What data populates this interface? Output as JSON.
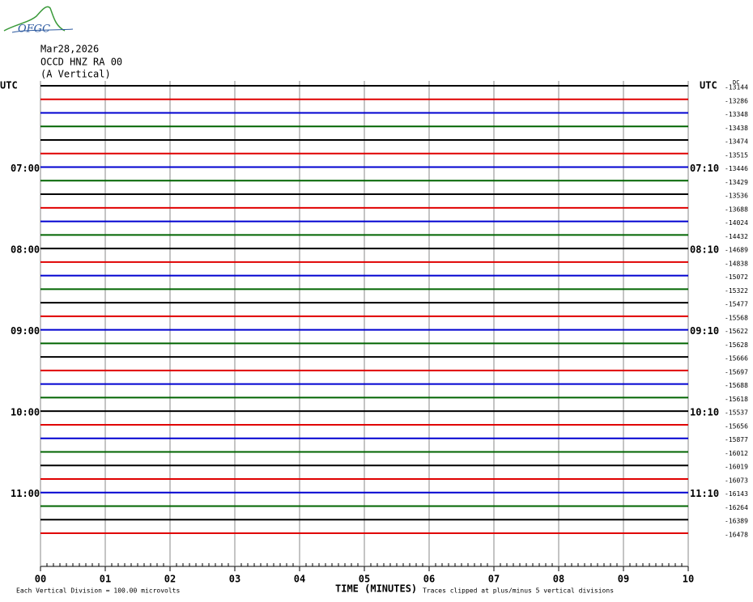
{
  "header": {
    "logo": "OFGC",
    "date": "Mar28,2026",
    "station": "OCCD HNZ RA 00",
    "component": "(A Vertical)"
  },
  "left_timezone": "UTC",
  "right_timezone": "UTC",
  "dc_label": "DC",
  "left_hour_labels": [
    "07:00",
    "08:00",
    "09:00",
    "10:00",
    "11:00"
  ],
  "right_hour_labels": [
    "07:10",
    "08:10",
    "09:10",
    "10:10",
    "11:10"
  ],
  "trace_offsets": [
    "-13144",
    "-13286",
    "-13348",
    "-13438",
    "-13474",
    "-13515",
    "-13446",
    "-13429",
    "-13536",
    "-13688",
    "-14024",
    "-14432",
    "-14689",
    "-14838",
    "-15072",
    "-15322",
    "-15477",
    "-15568",
    "-15622",
    "-15628",
    "-15666",
    "-15697",
    "-15688",
    "-15618",
    "-15537",
    "-15656",
    "-15877",
    "-16012",
    "-16019",
    "-16073",
    "-16143",
    "-16264",
    "-16389",
    "-16478"
  ],
  "trace_colors": [
    "#000000",
    "#e00000",
    "#0000d0",
    "#006400"
  ],
  "x_ticks": [
    "00",
    "01",
    "02",
    "03",
    "04",
    "05",
    "06",
    "07",
    "08",
    "09",
    "10"
  ],
  "x_axis_title": "TIME (MINUTES)",
  "footer_left": "Each Vertical Division =  100.00 microvolts",
  "footer_right": "Traces clipped at plus/minus 5 vertical divisions"
}
